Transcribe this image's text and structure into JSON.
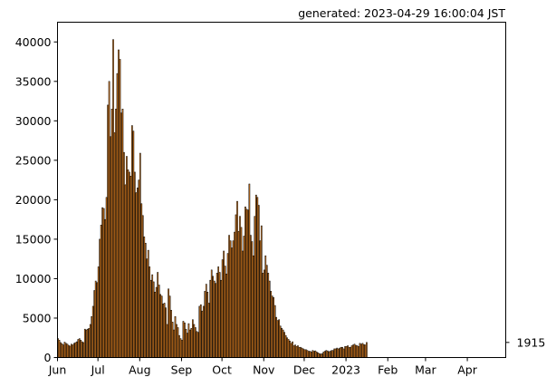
{
  "header": {
    "generated": "generated: 2023-04-29 16:00:04 JST"
  },
  "chart_data": {
    "type": "bar",
    "x_start": "2022-06-01",
    "x_end": "2023-04-29",
    "y_ticks": [
      0,
      5000,
      10000,
      15000,
      20000,
      25000,
      30000,
      35000,
      40000
    ],
    "y_tick_labels": [
      "0",
      "5000",
      "10000",
      "15000",
      "20000",
      "25000",
      "30000",
      "35000",
      "40000"
    ],
    "ylim": [
      0,
      42500
    ],
    "x_ticks": [
      {
        "date": "2022-06-01",
        "label": "Jun"
      },
      {
        "date": "2022-07-01",
        "label": "Jul"
      },
      {
        "date": "2022-08-01",
        "label": "Aug"
      },
      {
        "date": "2022-09-01",
        "label": "Sep"
      },
      {
        "date": "2022-10-01",
        "label": "Oct"
      },
      {
        "date": "2022-11-01",
        "label": "Nov"
      },
      {
        "date": "2022-12-01",
        "label": "Dec"
      },
      {
        "date": "2023-01-01",
        "label": "2023"
      },
      {
        "date": "2023-02-01",
        "label": "Feb"
      },
      {
        "date": "2023-03-01",
        "label": "Mar"
      },
      {
        "date": "2023-04-01",
        "label": "Apr"
      }
    ],
    "last_value_label": "1915",
    "last_value": 1915,
    "bar_color": "#e08020",
    "edge_color": "#000000",
    "values": [
      2400,
      2200,
      1900,
      1750,
      1600,
      1950,
      1800,
      1700,
      1550,
      1450,
      1700,
      1600,
      1800,
      1900,
      2000,
      2300,
      2400,
      2200,
      2000,
      1900,
      3600,
      3500,
      3600,
      3700,
      4200,
      5200,
      6500,
      8500,
      9700,
      9500,
      11500,
      15000,
      16800,
      19000,
      18900,
      17500,
      20300,
      32000,
      35000,
      28000,
      31500,
      40300,
      28500,
      31500,
      36000,
      39000,
      37800,
      31000,
      31500,
      26000,
      21900,
      25500,
      23800,
      23500,
      23000,
      29400,
      28700,
      23500,
      20900,
      21500,
      22500,
      25900,
      19500,
      18000,
      15300,
      14500,
      12500,
      13600,
      11500,
      9800,
      10500,
      9600,
      8300,
      8900,
      10800,
      9200,
      8000,
      7800,
      6800,
      6900,
      6300,
      4200,
      8700,
      7800,
      6000,
      4500,
      3500,
      5200,
      4200,
      3800,
      2800,
      2400,
      2200,
      4600,
      4400,
      3600,
      3100,
      4300,
      3500,
      3700,
      4800,
      4200,
      3800,
      3300,
      3200,
      6500,
      6700,
      5900,
      6500,
      8400,
      9300,
      8300,
      6900,
      9800,
      11100,
      10300,
      9700,
      9400,
      10700,
      11500,
      10800,
      9800,
      12400,
      13500,
      11600,
      10600,
      13200,
      15500,
      14800,
      13900,
      14800,
      15900,
      18100,
      19800,
      16000,
      17900,
      16500,
      13500,
      15400,
      19100,
      18800,
      18700,
      22000,
      15500,
      14700,
      12900,
      17900,
      20600,
      20300,
      19300,
      14800,
      16700,
      10700,
      11100,
      12900,
      11700,
      10700,
      9700,
      8400,
      7800,
      7600,
      6600,
      5100,
      4700,
      4800,
      4000,
      3700,
      3500,
      3200,
      2800,
      2500,
      2300,
      2100,
      1800,
      2000,
      1500,
      1600,
      1400,
      1500,
      1300,
      1300,
      1200,
      1100,
      1000,
      1000,
      900,
      800,
      800,
      700,
      900,
      800,
      850,
      700,
      600,
      500,
      450,
      500,
      700,
      800,
      900,
      850,
      750,
      800,
      900,
      900,
      1100,
      1100,
      1200,
      1100,
      1200,
      1300,
      1300,
      1100,
      1400,
      1400,
      1500,
      1300,
      1300,
      1500,
      1600,
      1700,
      1550,
      1500,
      1400,
      1800,
      1700,
      1800,
      1650,
      1600,
      1915
    ]
  }
}
